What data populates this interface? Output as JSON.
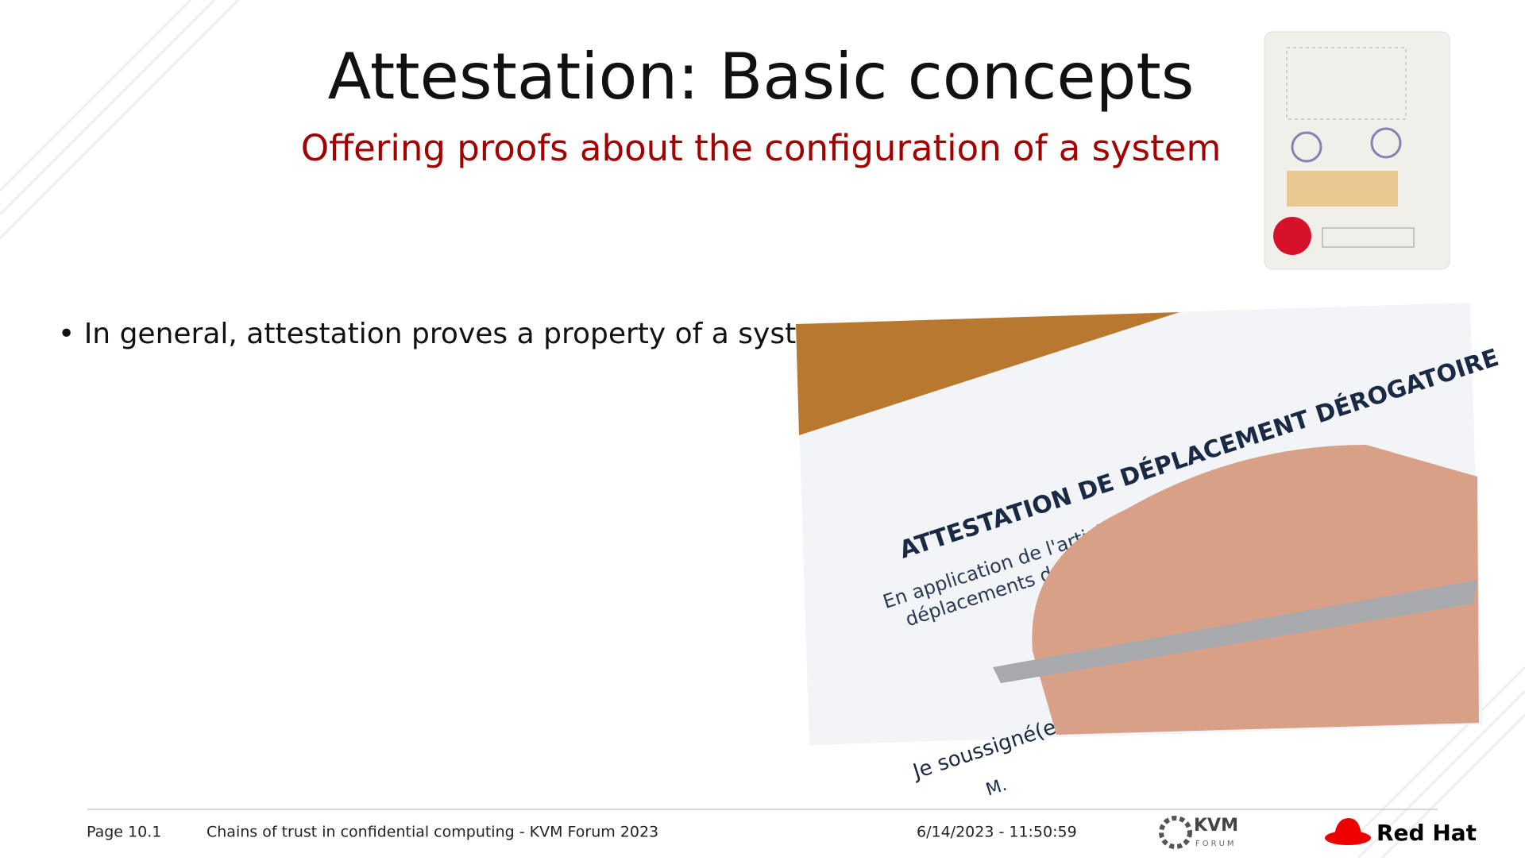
{
  "slide": {
    "title": "Attestation: Basic concepts",
    "subtitle": "Offering proofs about the configuration of a system",
    "bullets": [
      "In general, attestation proves a property of a system"
    ],
    "photo_text": {
      "heading": "ATTESTATION DE DÉPLACEMENT DÉROGATOIRE",
      "line1": "En application de l'article 1er du décret",
      "line2": "déplacements dans le cadre",
      "signature": "Je soussigné(e)",
      "name": "M."
    }
  },
  "footer": {
    "page": "Page 10.1",
    "talk": "Chains of trust in confidential computing - KVM Forum 2023",
    "date": "6/14/2023 - 11:50:59",
    "kvm": "KVM",
    "forum": "FORUM",
    "brand": "Red Hat"
  }
}
